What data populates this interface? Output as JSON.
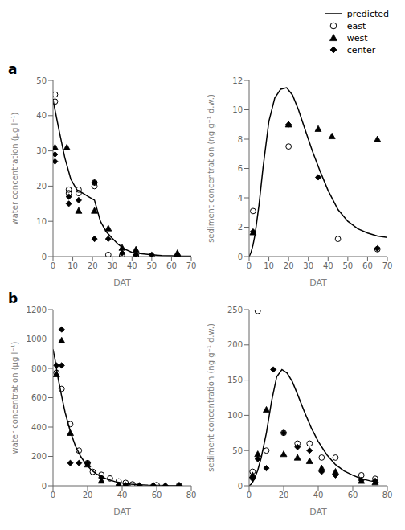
{
  "chart_data": [
    {
      "type": "scatter",
      "xlabel": "DAT",
      "ylabel": "water concentration (µg l⁻¹)",
      "xlim": [
        0,
        70
      ],
      "ylim": [
        0,
        50
      ],
      "xticks": [
        0,
        10,
        20,
        30,
        40,
        50,
        60,
        70
      ],
      "yticks": [
        0,
        10,
        20,
        30,
        40,
        50
      ],
      "grid": false,
      "legend": "upper right",
      "annotations": [
        "a"
      ],
      "series": [
        {
          "name": "predicted",
          "type": "line",
          "color": "black",
          "x": [
            0,
            3,
            6,
            9,
            12,
            15,
            18,
            21,
            24,
            27,
            30,
            33,
            36,
            40,
            45,
            50,
            55,
            60,
            65,
            70
          ],
          "values": [
            44.5,
            36,
            28,
            22,
            19,
            18,
            17,
            16,
            10,
            7,
            5.2,
            3.5,
            2.2,
            1.2,
            0.8,
            0.5,
            0.3,
            0.2,
            0.1,
            0.1
          ]
        },
        {
          "name": "east",
          "type": "scatter",
          "marker": "open_circle",
          "color": "black",
          "x": [
            1,
            1,
            8,
            8,
            13,
            13,
            21,
            21,
            28,
            35,
            35,
            42,
            42,
            50,
            63
          ],
          "values": [
            46,
            44,
            19,
            18,
            19,
            18,
            21,
            20,
            0.5,
            0.2,
            0.3,
            0,
            0,
            0,
            0
          ]
        },
        {
          "name": "west",
          "type": "scatter",
          "marker": "triangle",
          "color": "black",
          "x": [
            1,
            7,
            13,
            21,
            28,
            35,
            42,
            63
          ],
          "values": [
            31,
            31,
            13,
            13,
            8,
            2.5,
            2,
            1
          ]
        },
        {
          "name": "center",
          "type": "scatter",
          "marker": "diamond",
          "color": "black",
          "x": [
            1,
            1,
            8,
            8,
            13,
            21,
            21,
            28,
            35,
            42,
            50,
            63
          ],
          "values": [
            29,
            27,
            17,
            15,
            16,
            21,
            5,
            5,
            1,
            0.5,
            0.5,
            0
          ]
        }
      ]
    },
    {
      "type": "scatter",
      "xlabel": "DAT",
      "ylabel": "sediment concentration (ng g⁻¹ d.w.)",
      "xlim": [
        0,
        70
      ],
      "ylim": [
        0,
        12
      ],
      "xticks": [
        0,
        10,
        20,
        30,
        40,
        50,
        60,
        70
      ],
      "yticks": [
        0,
        2,
        4,
        6,
        8,
        10,
        12
      ],
      "grid": false,
      "legend": "upper right",
      "series": [
        {
          "name": "predicted",
          "type": "line",
          "color": "black",
          "x": [
            0,
            1,
            2,
            3,
            5,
            7,
            10,
            13,
            16,
            19,
            22,
            25,
            28,
            32,
            36,
            40,
            45,
            50,
            55,
            60,
            65,
            70
          ],
          "values": [
            0,
            0.3,
            0.8,
            1.5,
            3.5,
            6,
            9.2,
            10.8,
            11.4,
            11.5,
            11.0,
            10.0,
            8.8,
            7.2,
            5.8,
            4.5,
            3.2,
            2.4,
            1.9,
            1.6,
            1.4,
            1.3
          ]
        },
        {
          "name": "east",
          "type": "scatter",
          "marker": "open_circle",
          "color": "black",
          "x": [
            2,
            20,
            45,
            65
          ],
          "values": [
            3.1,
            7.5,
            1.2,
            0.5
          ]
        },
        {
          "name": "west",
          "type": "scatter",
          "marker": "triangle",
          "color": "black",
          "x": [
            2,
            20,
            35,
            42,
            65
          ],
          "values": [
            1.65,
            9.0,
            8.7,
            8.2,
            8.0
          ]
        },
        {
          "name": "center",
          "type": "scatter",
          "marker": "diamond",
          "color": "black",
          "x": [
            2,
            20,
            35,
            65
          ],
          "values": [
            1.7,
            9.0,
            5.4,
            0.55
          ]
        }
      ]
    },
    {
      "type": "scatter",
      "xlabel": "DAT",
      "ylabel": "water concentration (µg l⁻¹)",
      "xlim": [
        0,
        80
      ],
      "ylim": [
        0,
        1200
      ],
      "xticks": [
        0,
        20,
        40,
        60,
        80
      ],
      "yticks": [
        0,
        200,
        400,
        600,
        800,
        1000,
        1200
      ],
      "grid": false,
      "legend": "upper right",
      "annotations": [
        "b"
      ],
      "series": [
        {
          "name": "predicted",
          "type": "line",
          "color": "black",
          "x": [
            0,
            1,
            2,
            3,
            5,
            7,
            10,
            13,
            16,
            19,
            22,
            25,
            28,
            32,
            36,
            40,
            45,
            50,
            55,
            60,
            65,
            70,
            75
          ],
          "values": [
            930,
            870,
            800,
            730,
            610,
            500,
            370,
            270,
            200,
            148,
            110,
            82,
            62,
            42,
            28,
            19,
            11,
            7,
            4,
            3,
            2,
            1,
            0.5
          ]
        },
        {
          "name": "east",
          "type": "scatter",
          "marker": "open_circle",
          "color": "black",
          "x": [
            2,
            5,
            10,
            15,
            20,
            23,
            28,
            33,
            38,
            42,
            46,
            60,
            73
          ],
          "values": [
            770,
            660,
            420,
            240,
            155,
            95,
            75,
            50,
            30,
            20,
            10,
            5,
            3
          ]
        },
        {
          "name": "west",
          "type": "scatter",
          "marker": "triangle",
          "color": "black",
          "x": [
            2,
            5,
            10,
            20,
            28,
            38,
            58,
            73
          ],
          "values": [
            760,
            990,
            360,
            145,
            35,
            5,
            3,
            2
          ]
        },
        {
          "name": "center",
          "type": "scatter",
          "marker": "diamond",
          "color": "black",
          "x": [
            2,
            5,
            5,
            10,
            15,
            20,
            28,
            38,
            42,
            50,
            58,
            65,
            73
          ],
          "values": [
            820,
            1065,
            820,
            155,
            155,
            155,
            55,
            5,
            5,
            3,
            3,
            2,
            2
          ]
        }
      ]
    },
    {
      "type": "scatter",
      "xlabel": "DAT",
      "ylabel": "sediment concentration (ng g⁻¹ d.w.)",
      "xlim": [
        0,
        80
      ],
      "ylim": [
        0,
        250
      ],
      "xticks": [
        0,
        20,
        40,
        60,
        80
      ],
      "yticks": [
        0,
        50,
        100,
        150,
        200,
        250
      ],
      "grid": false,
      "legend": "upper right",
      "series": [
        {
          "name": "predicted",
          "type": "line",
          "color": "black",
          "x": [
            0,
            1,
            2,
            3,
            5,
            7,
            10,
            13,
            16,
            19,
            22,
            25,
            28,
            32,
            36,
            40,
            45,
            50,
            55,
            60,
            65,
            70,
            75
          ],
          "values": [
            0,
            2,
            5,
            10,
            22,
            40,
            75,
            120,
            155,
            165,
            160,
            148,
            130,
            105,
            82,
            63,
            44,
            30,
            21,
            15,
            10,
            7,
            5
          ]
        },
        {
          "name": "east",
          "type": "scatter",
          "marker": "open_circle",
          "color": "black",
          "x": [
            2,
            5,
            10,
            20,
            28,
            35,
            42,
            50,
            65,
            73
          ],
          "values": [
            20,
            248,
            50,
            75,
            60,
            60,
            40,
            40,
            15,
            10
          ]
        },
        {
          "name": "west",
          "type": "scatter",
          "marker": "triangle",
          "color": "black",
          "x": [
            2,
            5,
            10,
            20,
            28,
            35,
            42,
            50,
            65,
            73
          ],
          "values": [
            15,
            45,
            108,
            45,
            40,
            35,
            25,
            20,
            7,
            5
          ]
        },
        {
          "name": "center",
          "type": "scatter",
          "marker": "diamond",
          "color": "black",
          "x": [
            2,
            5,
            10,
            14,
            20,
            28,
            35,
            42,
            50,
            65,
            73
          ],
          "values": [
            10,
            38,
            25,
            165,
            75,
            55,
            50,
            20,
            15,
            8,
            7
          ]
        }
      ]
    }
  ]
}
